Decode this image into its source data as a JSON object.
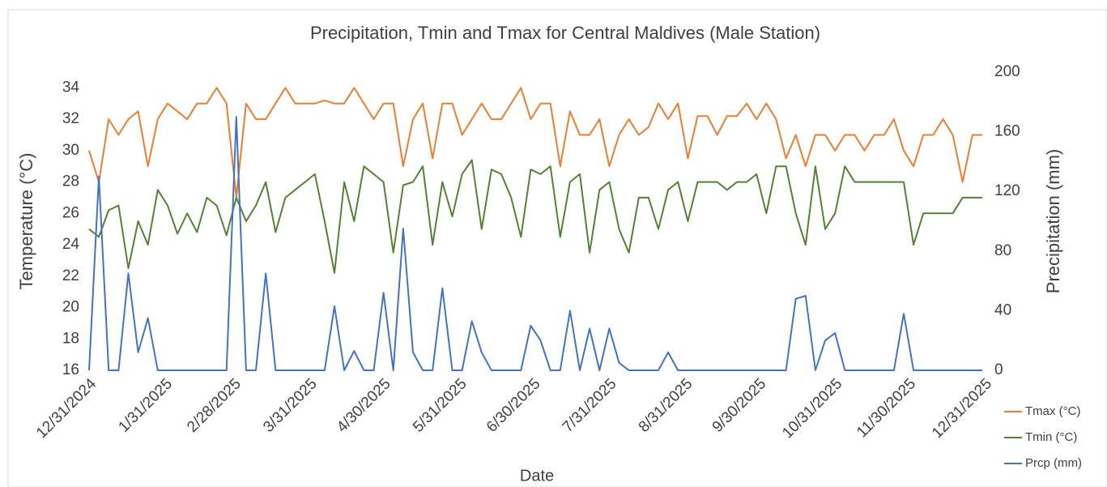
{
  "chart_data": {
    "type": "line",
    "title": "Precipitation, Tmin and Tmax for Central Maldives (Male Station)",
    "xlabel": "Date",
    "ylabel": "Temperature (°C)",
    "y2label": "Precipitation (mm)",
    "x": [
      "12/31/2024",
      "1/4/2025",
      "1/8/2025",
      "1/12/2025",
      "1/16/2025",
      "1/20/2025",
      "1/24/2025",
      "1/28/2025",
      "2/1/2025",
      "2/5/2025",
      "2/9/2025",
      "2/13/2025",
      "2/17/2025",
      "2/21/2025",
      "2/25/2025",
      "3/1/2025",
      "3/5/2025",
      "3/9/2025",
      "3/13/2025",
      "3/17/2025",
      "3/21/2025",
      "3/25/2025",
      "3/29/2025",
      "4/2/2025",
      "4/6/2025",
      "4/10/2025",
      "4/14/2025",
      "4/18/2025",
      "4/22/2025",
      "4/26/2025",
      "4/30/2025",
      "5/4/2025",
      "5/8/2025",
      "5/12/2025",
      "5/16/2025",
      "5/20/2025",
      "5/24/2025",
      "5/28/2025",
      "6/1/2025",
      "6/5/2025",
      "6/9/2025",
      "6/13/2025",
      "6/17/2025",
      "6/21/2025",
      "6/25/2025",
      "6/29/2025",
      "7/3/2025",
      "7/7/2025",
      "7/11/2025",
      "7/15/2025",
      "7/19/2025",
      "7/23/2025",
      "7/27/2025",
      "7/31/2025",
      "8/4/2025",
      "8/8/2025",
      "8/12/2025",
      "8/16/2025",
      "8/20/2025",
      "8/24/2025",
      "8/28/2025",
      "9/1/2025",
      "9/5/2025",
      "9/9/2025",
      "9/13/2025",
      "9/17/2025",
      "9/21/2025",
      "9/25/2025",
      "9/29/2025",
      "10/3/2025",
      "10/7/2025",
      "10/11/2025",
      "10/15/2025",
      "10/19/2025",
      "10/23/2025",
      "10/27/2025",
      "10/31/2025",
      "11/4/2025",
      "11/8/2025",
      "11/12/2025",
      "11/16/2025",
      "11/20/2025",
      "11/24/2025",
      "11/28/2025",
      "12/2/2025",
      "12/6/2025",
      "12/10/2025",
      "12/14/2025",
      "12/18/2025",
      "12/22/2025",
      "12/26/2025",
      "12/30/2025"
    ],
    "series": [
      {
        "name": "Tmax (°C)",
        "color": "#ed7d31",
        "values": [
          30,
          28,
          32,
          31,
          32,
          32.5,
          29,
          32,
          33,
          32.5,
          32,
          33,
          33,
          34,
          33,
          27,
          33,
          32,
          32,
          33,
          34,
          33,
          33,
          33,
          33.2,
          33,
          33,
          34,
          33,
          32,
          33,
          33,
          29,
          32,
          33,
          29.5,
          33,
          33,
          31,
          32,
          33,
          32,
          32,
          33,
          34,
          32,
          33,
          33,
          29,
          32.5,
          31,
          31,
          32,
          29,
          31,
          32,
          31,
          31.5,
          33,
          32,
          33,
          29.5,
          32.2,
          32.2,
          31,
          32.2,
          32.2,
          33,
          32,
          33,
          32,
          29.5,
          31,
          29,
          31,
          31,
          30,
          31,
          31,
          30,
          31,
          31,
          32,
          30,
          29,
          31,
          31,
          32,
          31,
          28,
          31,
          31
        ]
      },
      {
        "name": "Tmin (°C)",
        "color": "#548235",
        "values": [
          25,
          24.5,
          26.2,
          26.5,
          22.5,
          25.5,
          24,
          27.5,
          26.5,
          24.7,
          26,
          24.8,
          27,
          26.5,
          24.6,
          27,
          25.5,
          26.5,
          28,
          24.8,
          27,
          27.5,
          28,
          28.5,
          25.5,
          22.2,
          28,
          25.5,
          29,
          28.5,
          28,
          23.5,
          27.8,
          28,
          29,
          24,
          28,
          25.8,
          28.5,
          29.4,
          25,
          28.8,
          28.5,
          27,
          24.5,
          28.8,
          28.5,
          29,
          24.5,
          28,
          28.5,
          23.5,
          27.5,
          28,
          25,
          23.5,
          27,
          27,
          25,
          27.5,
          28,
          25.5,
          28,
          28,
          28,
          27.5,
          28,
          28,
          28.5,
          26,
          29,
          29,
          26,
          24,
          29,
          25,
          26,
          29,
          28,
          28,
          28,
          28,
          28,
          28,
          24,
          26,
          26,
          26,
          26,
          27,
          27,
          27
        ]
      },
      {
        "name": "Prcp (mm)",
        "color": "#4472c4",
        "axis": "y2",
        "values": [
          0,
          130,
          0,
          0,
          65,
          12,
          35,
          0,
          0,
          0,
          0,
          0,
          0,
          0,
          0,
          170,
          0,
          0,
          65,
          0,
          0,
          0,
          0,
          0,
          0,
          43,
          0,
          13,
          0,
          0,
          52,
          0,
          95,
          12,
          0,
          0,
          55,
          0,
          0,
          33,
          12,
          0,
          0,
          0,
          0,
          30,
          20,
          0,
          0,
          40,
          0,
          28,
          0,
          28,
          5,
          0,
          0,
          0,
          0,
          12,
          0,
          0,
          0,
          0,
          0,
          0,
          0,
          0,
          0,
          0,
          0,
          0,
          48,
          50,
          0,
          20,
          25,
          0,
          0,
          0,
          0,
          0,
          0,
          38,
          0,
          0,
          0,
          0,
          0,
          0,
          0,
          0
        ]
      }
    ],
    "xticks": [
      "12/31/2024",
      "1/31/2025",
      "2/28/2025",
      "3/31/2025",
      "4/30/2025",
      "5/31/2025",
      "6/30/2025",
      "7/31/2025",
      "8/31/2025",
      "9/30/2025",
      "10/31/2025",
      "11/30/2025",
      "12/31/2025"
    ],
    "xlim": [
      "12/31/2024",
      "12/31/2025"
    ],
    "ylim": [
      16,
      35
    ],
    "yticks": [
      16,
      18,
      20,
      22,
      24,
      26,
      28,
      30,
      32,
      34
    ],
    "y2lim": [
      0,
      200
    ],
    "y2ticks": [
      0,
      40,
      80,
      120,
      160,
      200
    ],
    "legend": "right"
  }
}
